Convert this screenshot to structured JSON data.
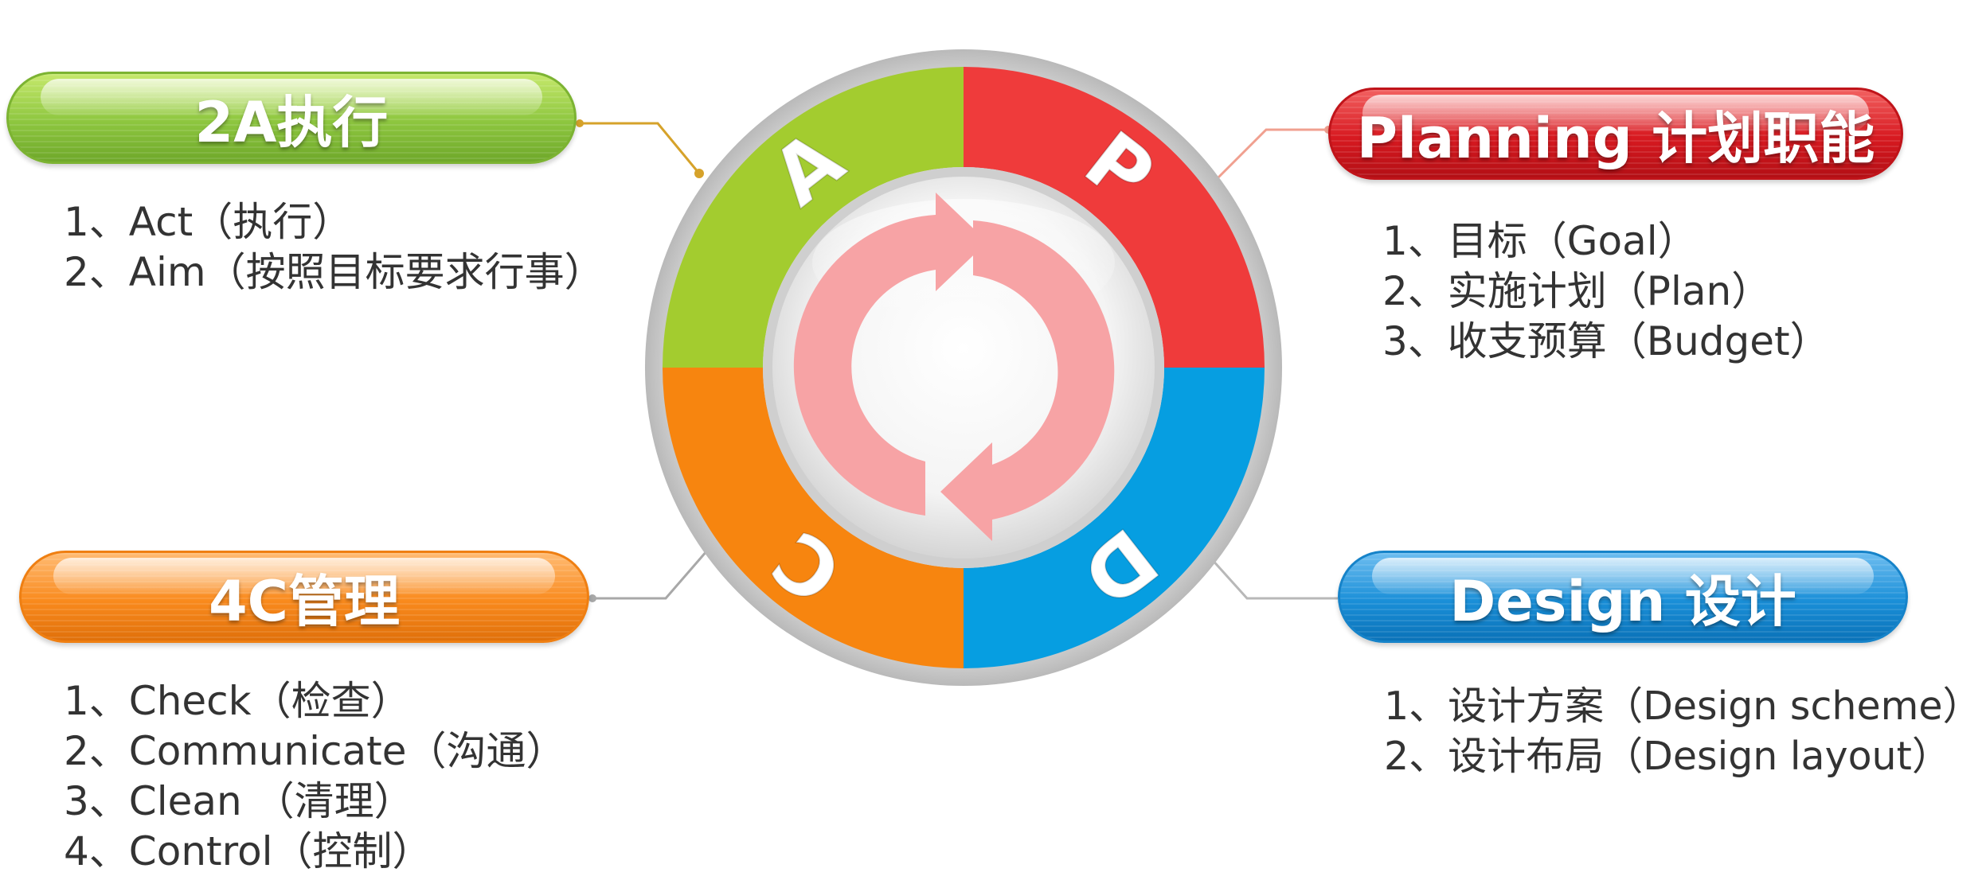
{
  "quadrants": [
    {
      "letter": "A",
      "color": "#a3cc2f"
    },
    {
      "letter": "P",
      "color": "#ef3b3b"
    },
    {
      "letter": "C",
      "color": "#f7850f"
    },
    {
      "letter": "D",
      "color": "#069ee1"
    }
  ],
  "arrow_color": "#f7a3a5",
  "connector_colors": {
    "act": "#d6a22a",
    "plan": "#f0a090",
    "check": "#a8a8a8",
    "design": "#b8b8b8"
  },
  "sections": {
    "act": {
      "title": "2A执行",
      "items": [
        "1、Act（执行）",
        "2、Aim（按照目标要求行事）"
      ]
    },
    "plan": {
      "title": "Planning 计划职能",
      "items": [
        "1、目标（Goal）",
        "2、实施计划（Plan）",
        "3、收支预算（Budget）"
      ]
    },
    "check": {
      "title": "4C管理",
      "items": [
        "1、Check（检查）",
        "2、Communicate（沟通）",
        "3、Clean （清理）",
        "4、Control（控制）"
      ]
    },
    "design": {
      "title": "Design 设计",
      "items": [
        "1、设计方案（Design scheme）",
        "2、设计布局（Design layout）"
      ]
    }
  }
}
